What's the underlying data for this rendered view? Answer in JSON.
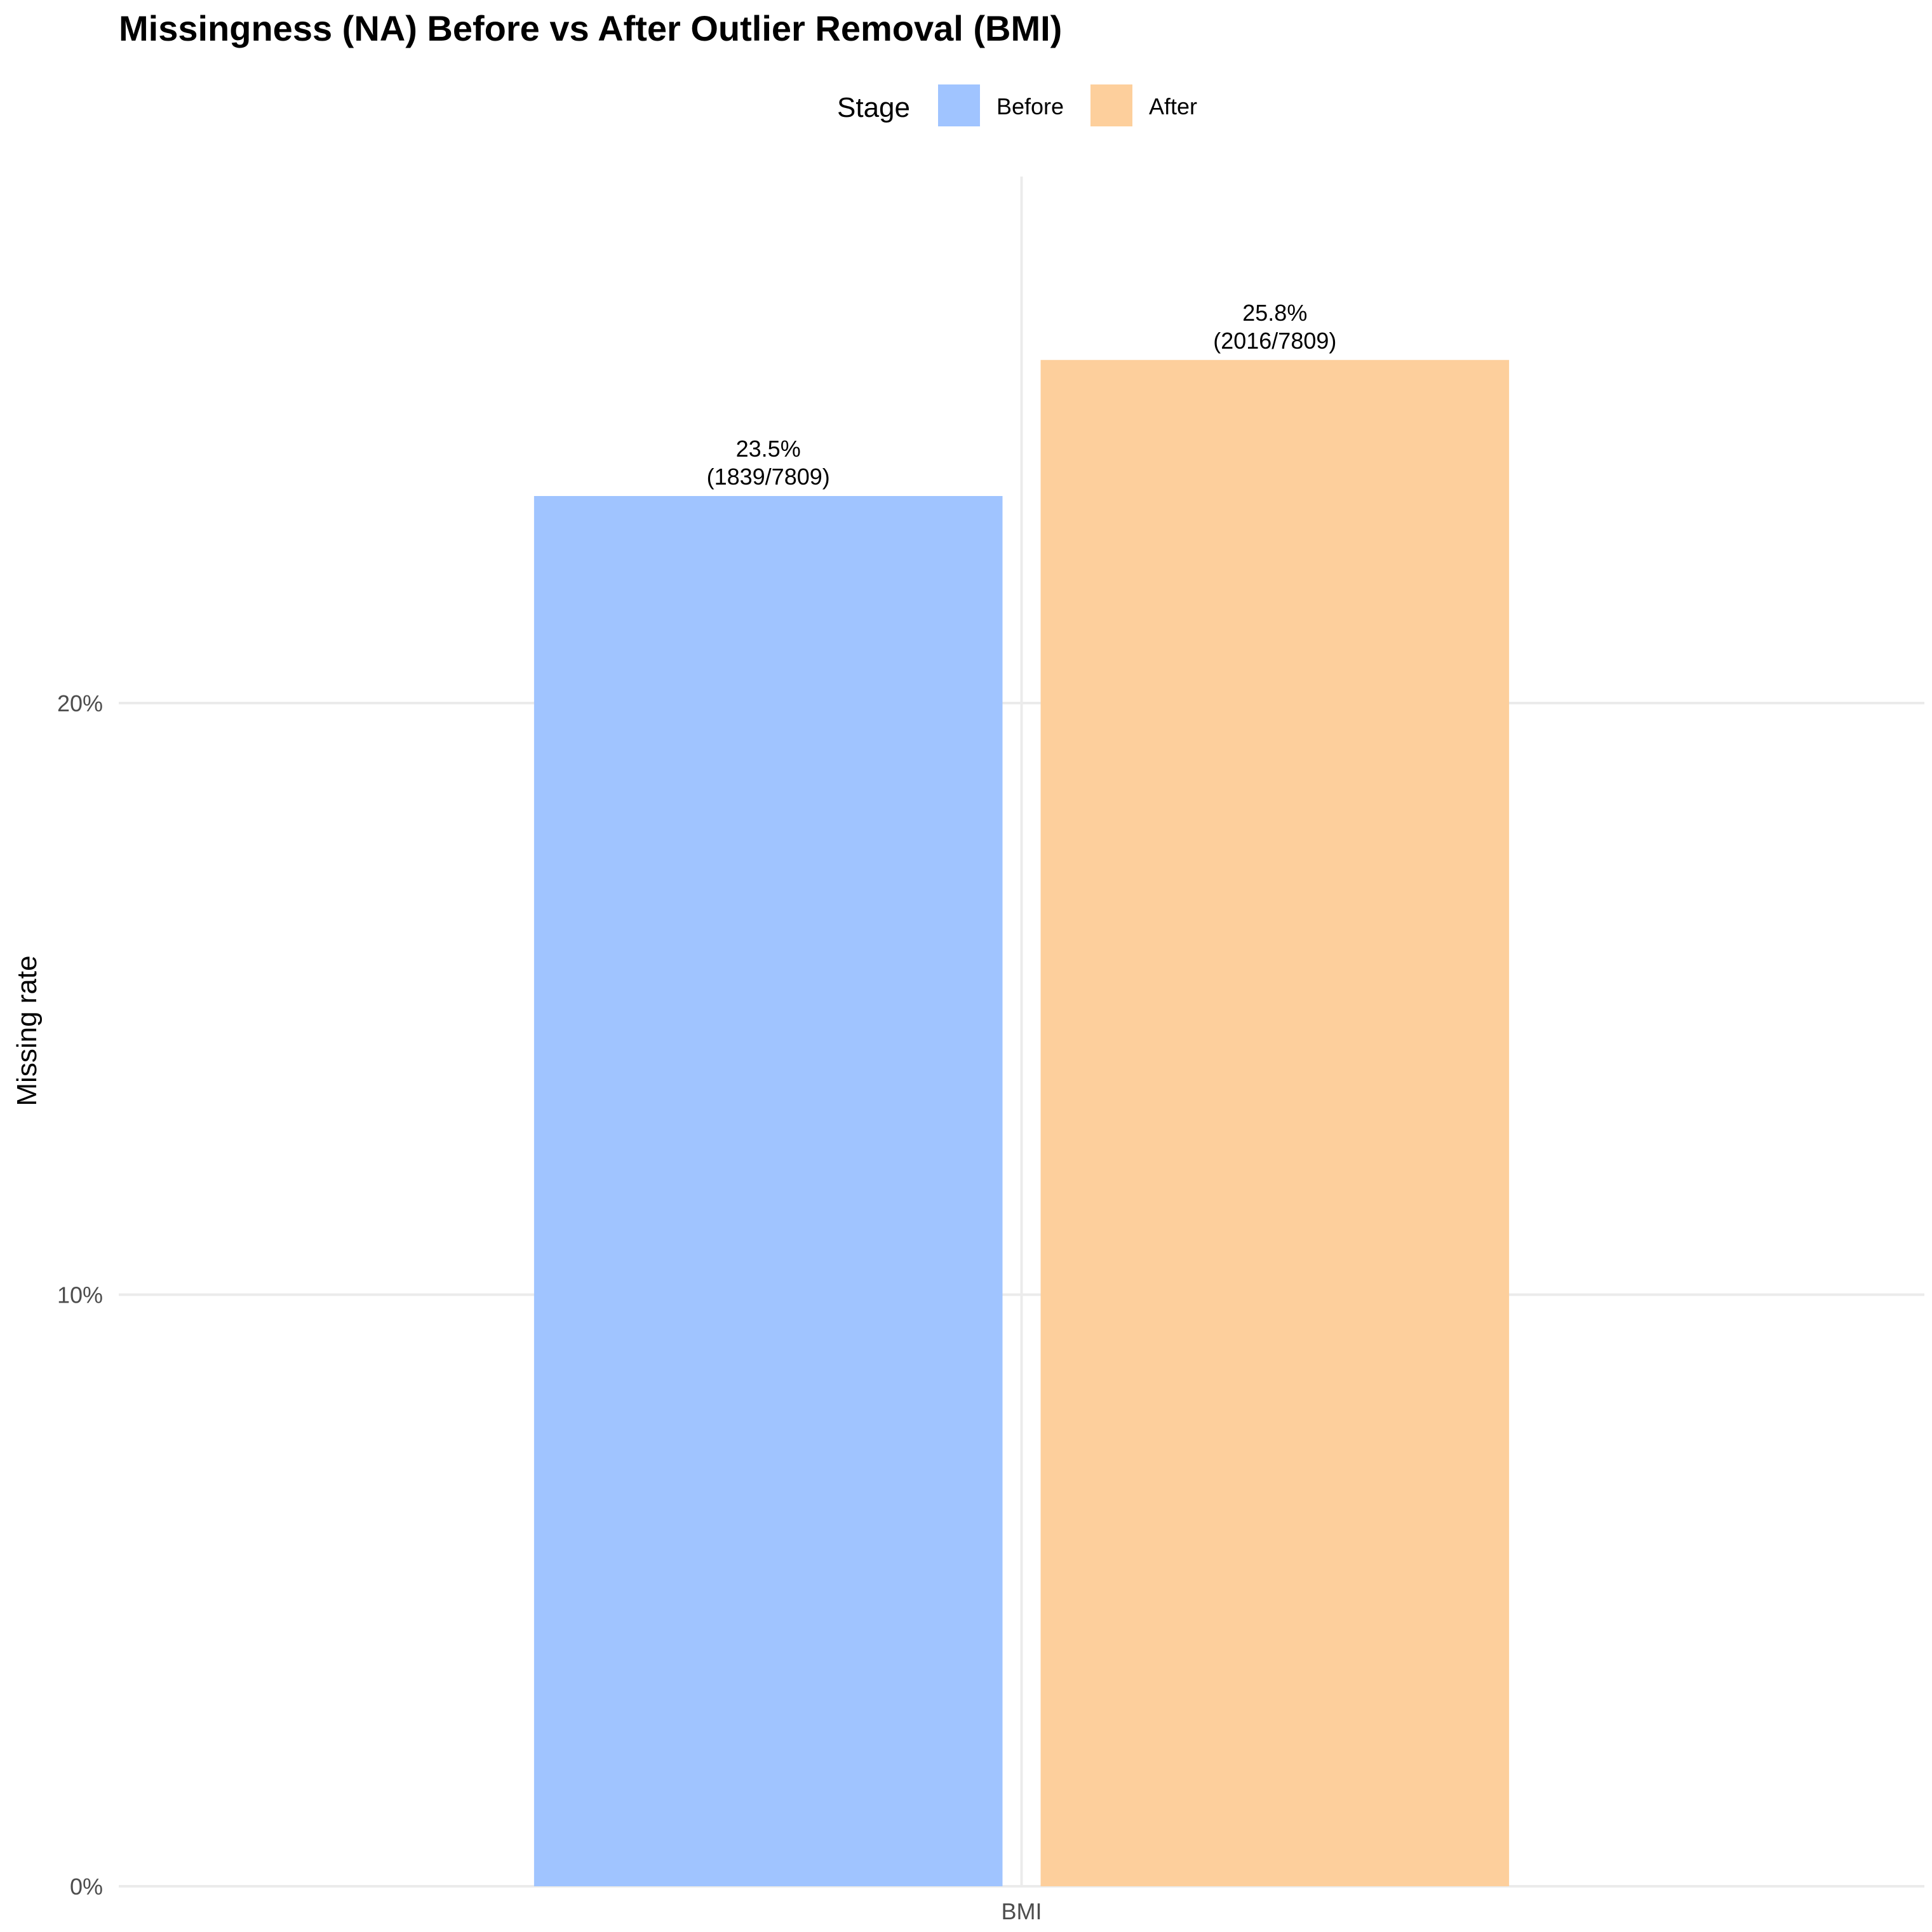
{
  "chart_data": {
    "type": "bar",
    "title": "Missingness (NA) Before vs After Outlier Removal (BMI)",
    "xlabel": "",
    "ylabel": "Missing rate",
    "categories": [
      "BMI"
    ],
    "ylim": [
      0,
      0.289
    ],
    "y_ticks": [
      {
        "value": 0,
        "label": "0%"
      },
      {
        "value": 0.1,
        "label": "10%"
      },
      {
        "value": 0.2,
        "label": "20%"
      }
    ],
    "grid": true,
    "legend": {
      "title": "Stage",
      "placement": "top"
    },
    "series": [
      {
        "name": "Before",
        "color": "#a0c4ff",
        "values": [
          0.235
        ],
        "labels": [
          {
            "line1": "23.5%",
            "line2": "(1839/7809)"
          }
        ]
      },
      {
        "name": "After",
        "color": "#fdcf9c",
        "values": [
          0.258
        ],
        "labels": [
          {
            "line1": "25.8%",
            "line2": "(2016/7809)"
          }
        ]
      }
    ]
  }
}
